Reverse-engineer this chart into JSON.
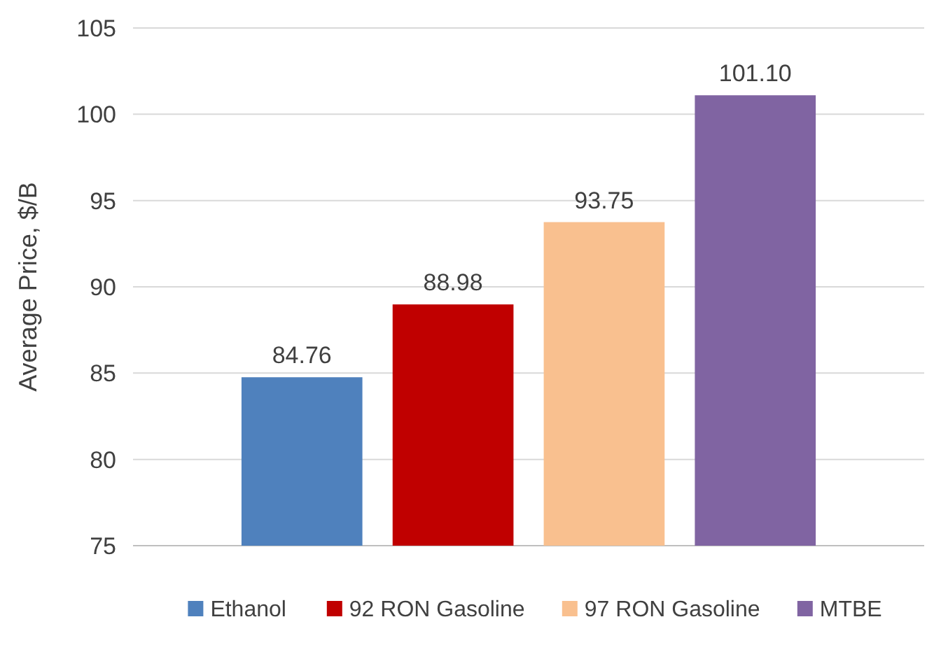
{
  "chart_data": {
    "type": "bar",
    "ylabel": "Average Price, $/B",
    "categories": [
      null
    ],
    "series": [
      {
        "name": "Ethanol",
        "color": "#4f81bd",
        "values": [
          84.76
        ]
      },
      {
        "name": "92 RON Gasoline",
        "color": "#c00000",
        "values": [
          88.98
        ]
      },
      {
        "name": "97 RON Gasoline",
        "color": "#f9c08f",
        "values": [
          93.75
        ]
      },
      {
        "name": "MTBE",
        "color": "#8064a2",
        "values": [
          101.1
        ]
      }
    ],
    "value_labels": [
      "84.76",
      "88.98",
      "93.75",
      "101.10"
    ],
    "ylim": [
      75,
      105
    ],
    "yticks": [
      75,
      80,
      85,
      90,
      95,
      100,
      105
    ],
    "grid": "y",
    "legend": "bottom"
  }
}
